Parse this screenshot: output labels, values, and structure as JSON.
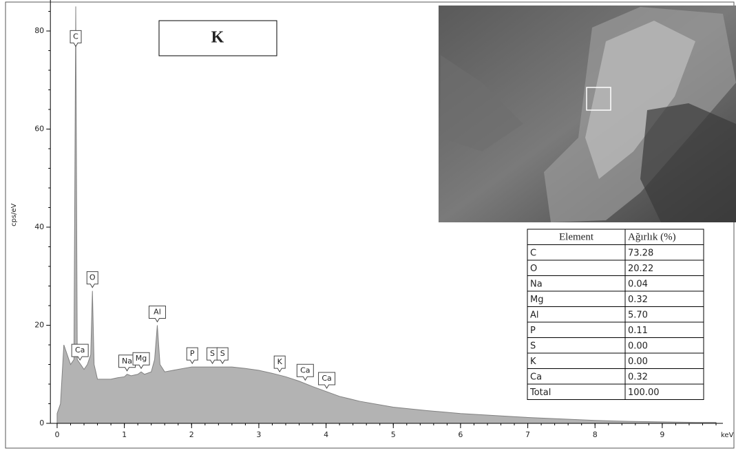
{
  "chart_data": {
    "type": "area",
    "panel_label": "K",
    "y_label": "cps/eV",
    "x_label": "keV",
    "xlim": [
      -0.1,
      9.8
    ],
    "ylim": [
      0,
      85
    ],
    "xticks": [
      0,
      1,
      2,
      3,
      4,
      5,
      6,
      7,
      8,
      9
    ],
    "yticks": [
      0,
      20,
      40,
      60,
      80
    ],
    "color": "#b3b3b3",
    "x": [
      0,
      0.05,
      0.1,
      0.15,
      0.2,
      0.25,
      0.277,
      0.3,
      0.35,
      0.4,
      0.45,
      0.5,
      0.525,
      0.55,
      0.6,
      0.7,
      0.8,
      0.9,
      1.0,
      1.04,
      1.1,
      1.2,
      1.25,
      1.3,
      1.4,
      1.45,
      1.49,
      1.53,
      1.6,
      1.8,
      2.0,
      2.2,
      2.4,
      2.6,
      2.8,
      3.0,
      3.2,
      3.4,
      3.6,
      3.8,
      4.0,
      4.2,
      4.5,
      5.0,
      5.5,
      6.0,
      6.5,
      7.0,
      7.5,
      8.0,
      8.5,
      9.0,
      9.5,
      9.8
    ],
    "values": [
      2,
      4,
      16,
      14,
      12,
      13,
      85,
      13,
      12,
      11,
      12,
      14,
      27,
      12,
      9,
      9,
      9,
      9.3,
      9.5,
      10,
      9.7,
      10,
      10.5,
      10,
      10.5,
      13,
      20,
      12,
      10.5,
      11,
      11.5,
      11.5,
      11.5,
      11.5,
      11.2,
      10.8,
      10.2,
      9.5,
      8.6,
      7.5,
      6.5,
      5.5,
      4.5,
      3.3,
      2.6,
      2,
      1.6,
      1.2,
      0.9,
      0.6,
      0.4,
      0.3,
      0.2,
      0.2
    ],
    "peaks": [
      {
        "label": "C",
        "x": 0.277
      },
      {
        "label": "Ca",
        "x": 0.34
      },
      {
        "label": "O",
        "x": 0.525
      },
      {
        "label": "Na",
        "x": 1.04
      },
      {
        "label": "Mg",
        "x": 1.25
      },
      {
        "label": "Al",
        "x": 1.49
      },
      {
        "label": "P",
        "x": 2.01
      },
      {
        "label": "S",
        "x": 2.31
      },
      {
        "label": "S",
        "x": 2.46
      },
      {
        "label": "K",
        "x": 3.31
      },
      {
        "label": "Ca",
        "x": 3.69
      },
      {
        "label": "Ca",
        "x": 4.01
      }
    ],
    "table": {
      "header": [
        "Element",
        "Ağırlık (%)"
      ],
      "rows": [
        [
          "C",
          "73.28"
        ],
        [
          "O",
          "20.22"
        ],
        [
          "Na",
          "0.04"
        ],
        [
          "Mg",
          "0.32"
        ],
        [
          "Al",
          "5.70"
        ],
        [
          "P",
          "0.11"
        ],
        [
          "S",
          "0.00"
        ],
        [
          "K",
          "0.00"
        ],
        [
          "Ca",
          "0.32"
        ],
        [
          "Total",
          "100.00"
        ]
      ]
    }
  }
}
